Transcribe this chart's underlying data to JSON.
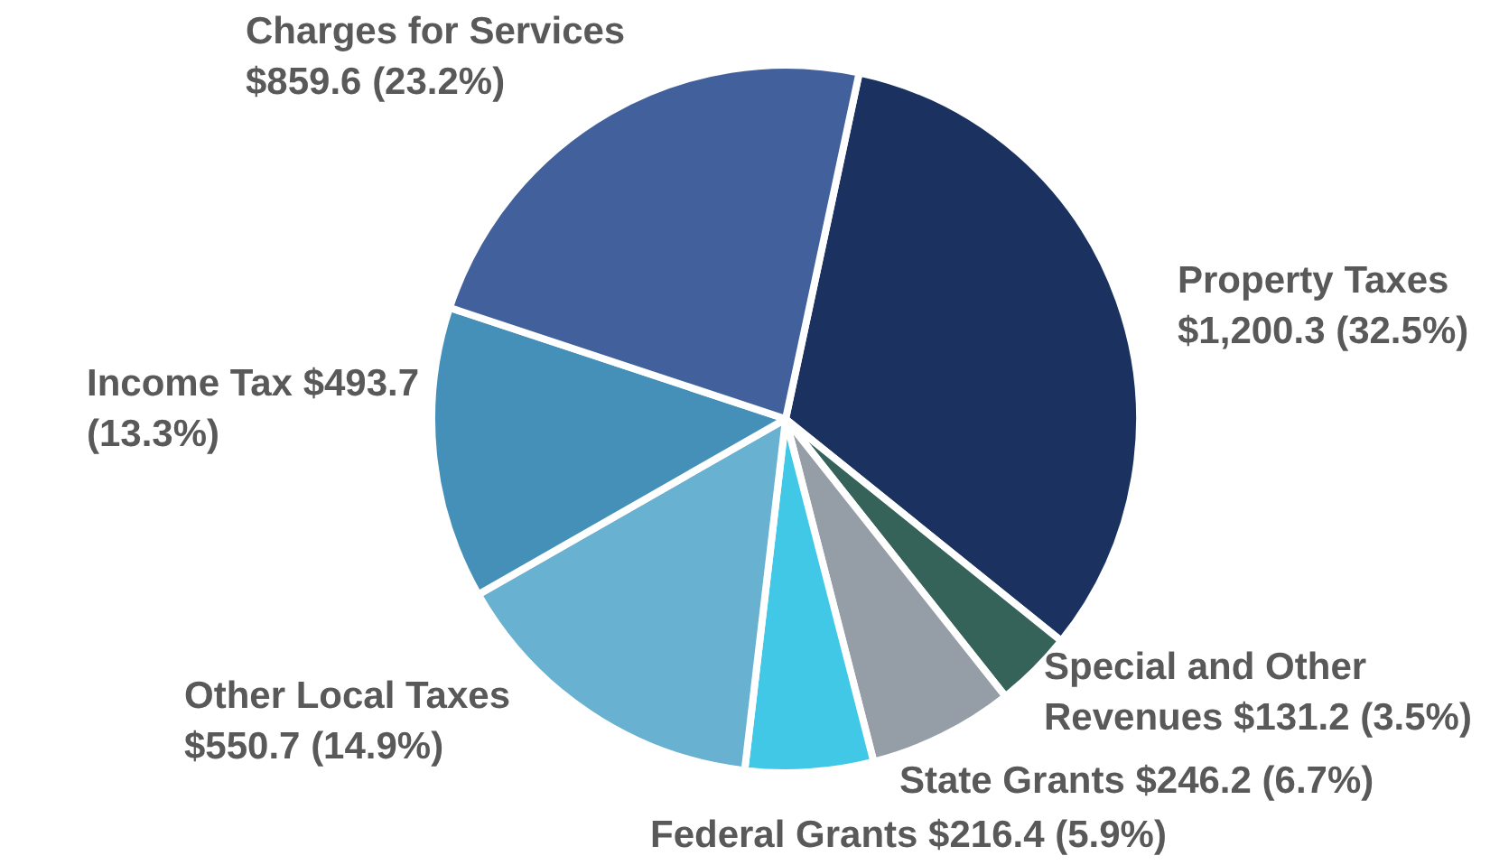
{
  "chart_data": {
    "type": "pie",
    "categories": [
      "Property Taxes",
      "Special and Other Revenues",
      "State Grants",
      "Federal Grants",
      "Other Local Taxes",
      "Income Tax",
      "Charges for Services"
    ],
    "values": [
      1200.3,
      131.2,
      246.2,
      216.4,
      550.7,
      493.7,
      859.6
    ],
    "colors": [
      "#1b3160",
      "#35635a",
      "#959ea6",
      "#40c8e6",
      "#68b1d0",
      "#4490b8",
      "#41609c"
    ],
    "value_labels": [
      "$1,200.3 (32.5%)",
      "$131.2 (3.5%)",
      "$246.2 (6.7%)",
      "$216.4 (5.9%)",
      "$550.7 (14.9%)",
      "$493.7 (13.3%)",
      "$859.6 (23.2%)"
    ],
    "legend": false
  }
}
